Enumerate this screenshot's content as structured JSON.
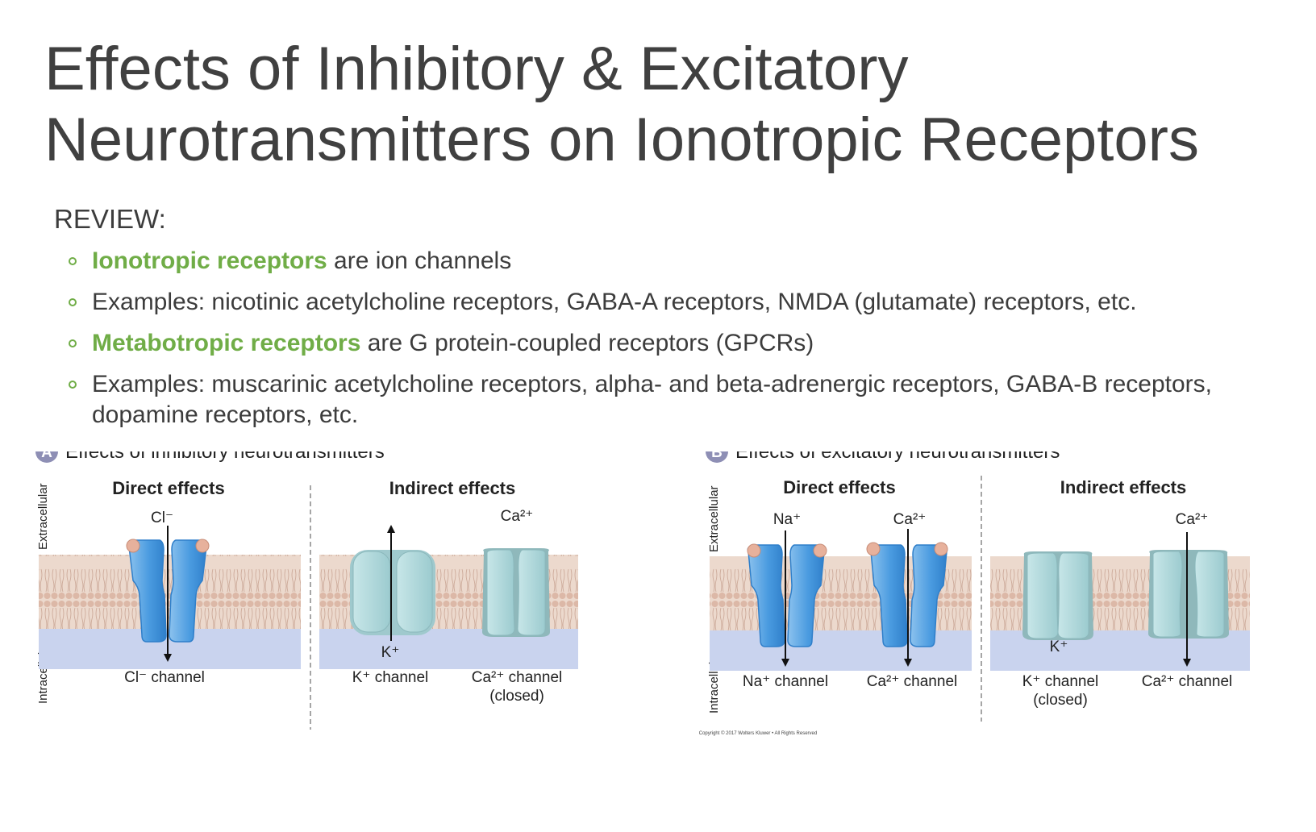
{
  "title": {
    "line1": "Effects of Inhibitory & Excitatory",
    "line2": "Neurotransmitters on Ionotropic Receptors"
  },
  "review": {
    "label": "REVIEW:",
    "items": [
      {
        "highlight": "Ionotropic receptors",
        "text": " are ion channels"
      },
      {
        "highlight": "",
        "text": "Examples: nicotinic acetylcholine receptors, GABA-A receptors, NMDA (glutamate) receptors, etc."
      },
      {
        "highlight": "Metabotropic receptors",
        "text": " are G protein-coupled receptors (GPCRs)"
      },
      {
        "highlight": "",
        "text": "Examples: muscarinic acetylcholine receptors, alpha- and beta-adrenergic receptors, GABA-B receptors, dopamine receptors, etc."
      }
    ]
  },
  "figure": {
    "panel_a": {
      "badge": "A",
      "heading": "Effects of inhibitory neurotransmitters",
      "extracellular": "Extracellular",
      "intracellular": "Intracellular",
      "direct_effects": "Direct effects",
      "indirect_effects": "Indirect effects",
      "cl_ion": "Cl⁻",
      "cl_channel": "Cl⁻ channel",
      "k_ion": "K⁺",
      "k_channel": "K⁺ channel",
      "ca_ion": "Ca²⁺",
      "ca_channel": "Ca²⁺ channel",
      "ca_state": "(closed)"
    },
    "panel_b": {
      "badge": "B",
      "heading": "Effects of excitatory neurotransmitters",
      "extracellular": "Extracellular",
      "intracellular": "Intracellular",
      "direct_effects": "Direct effects",
      "indirect_effects": "Indirect effects",
      "na_ion": "Na⁺",
      "na_channel": "Na⁺ channel",
      "ca_ion": "Ca²⁺",
      "ca_channel": "Ca²⁺ channel",
      "k_ion": "K⁺",
      "k_channel": "K⁺ channel",
      "k_state": "(closed)",
      "ca2_ion": "Ca²⁺",
      "ca2_channel": "Ca²⁺ channel"
    },
    "copyright": "Copyright © 2017 Wolters Kluwer • All Rights Reserved"
  },
  "colors": {
    "accent_green": "#70ad47",
    "channel_blue": "#3d8fd6",
    "channel_teal": "#a8d3d6",
    "membrane": "#e3cbbd",
    "cytoplasm": "#c9d3ee"
  }
}
